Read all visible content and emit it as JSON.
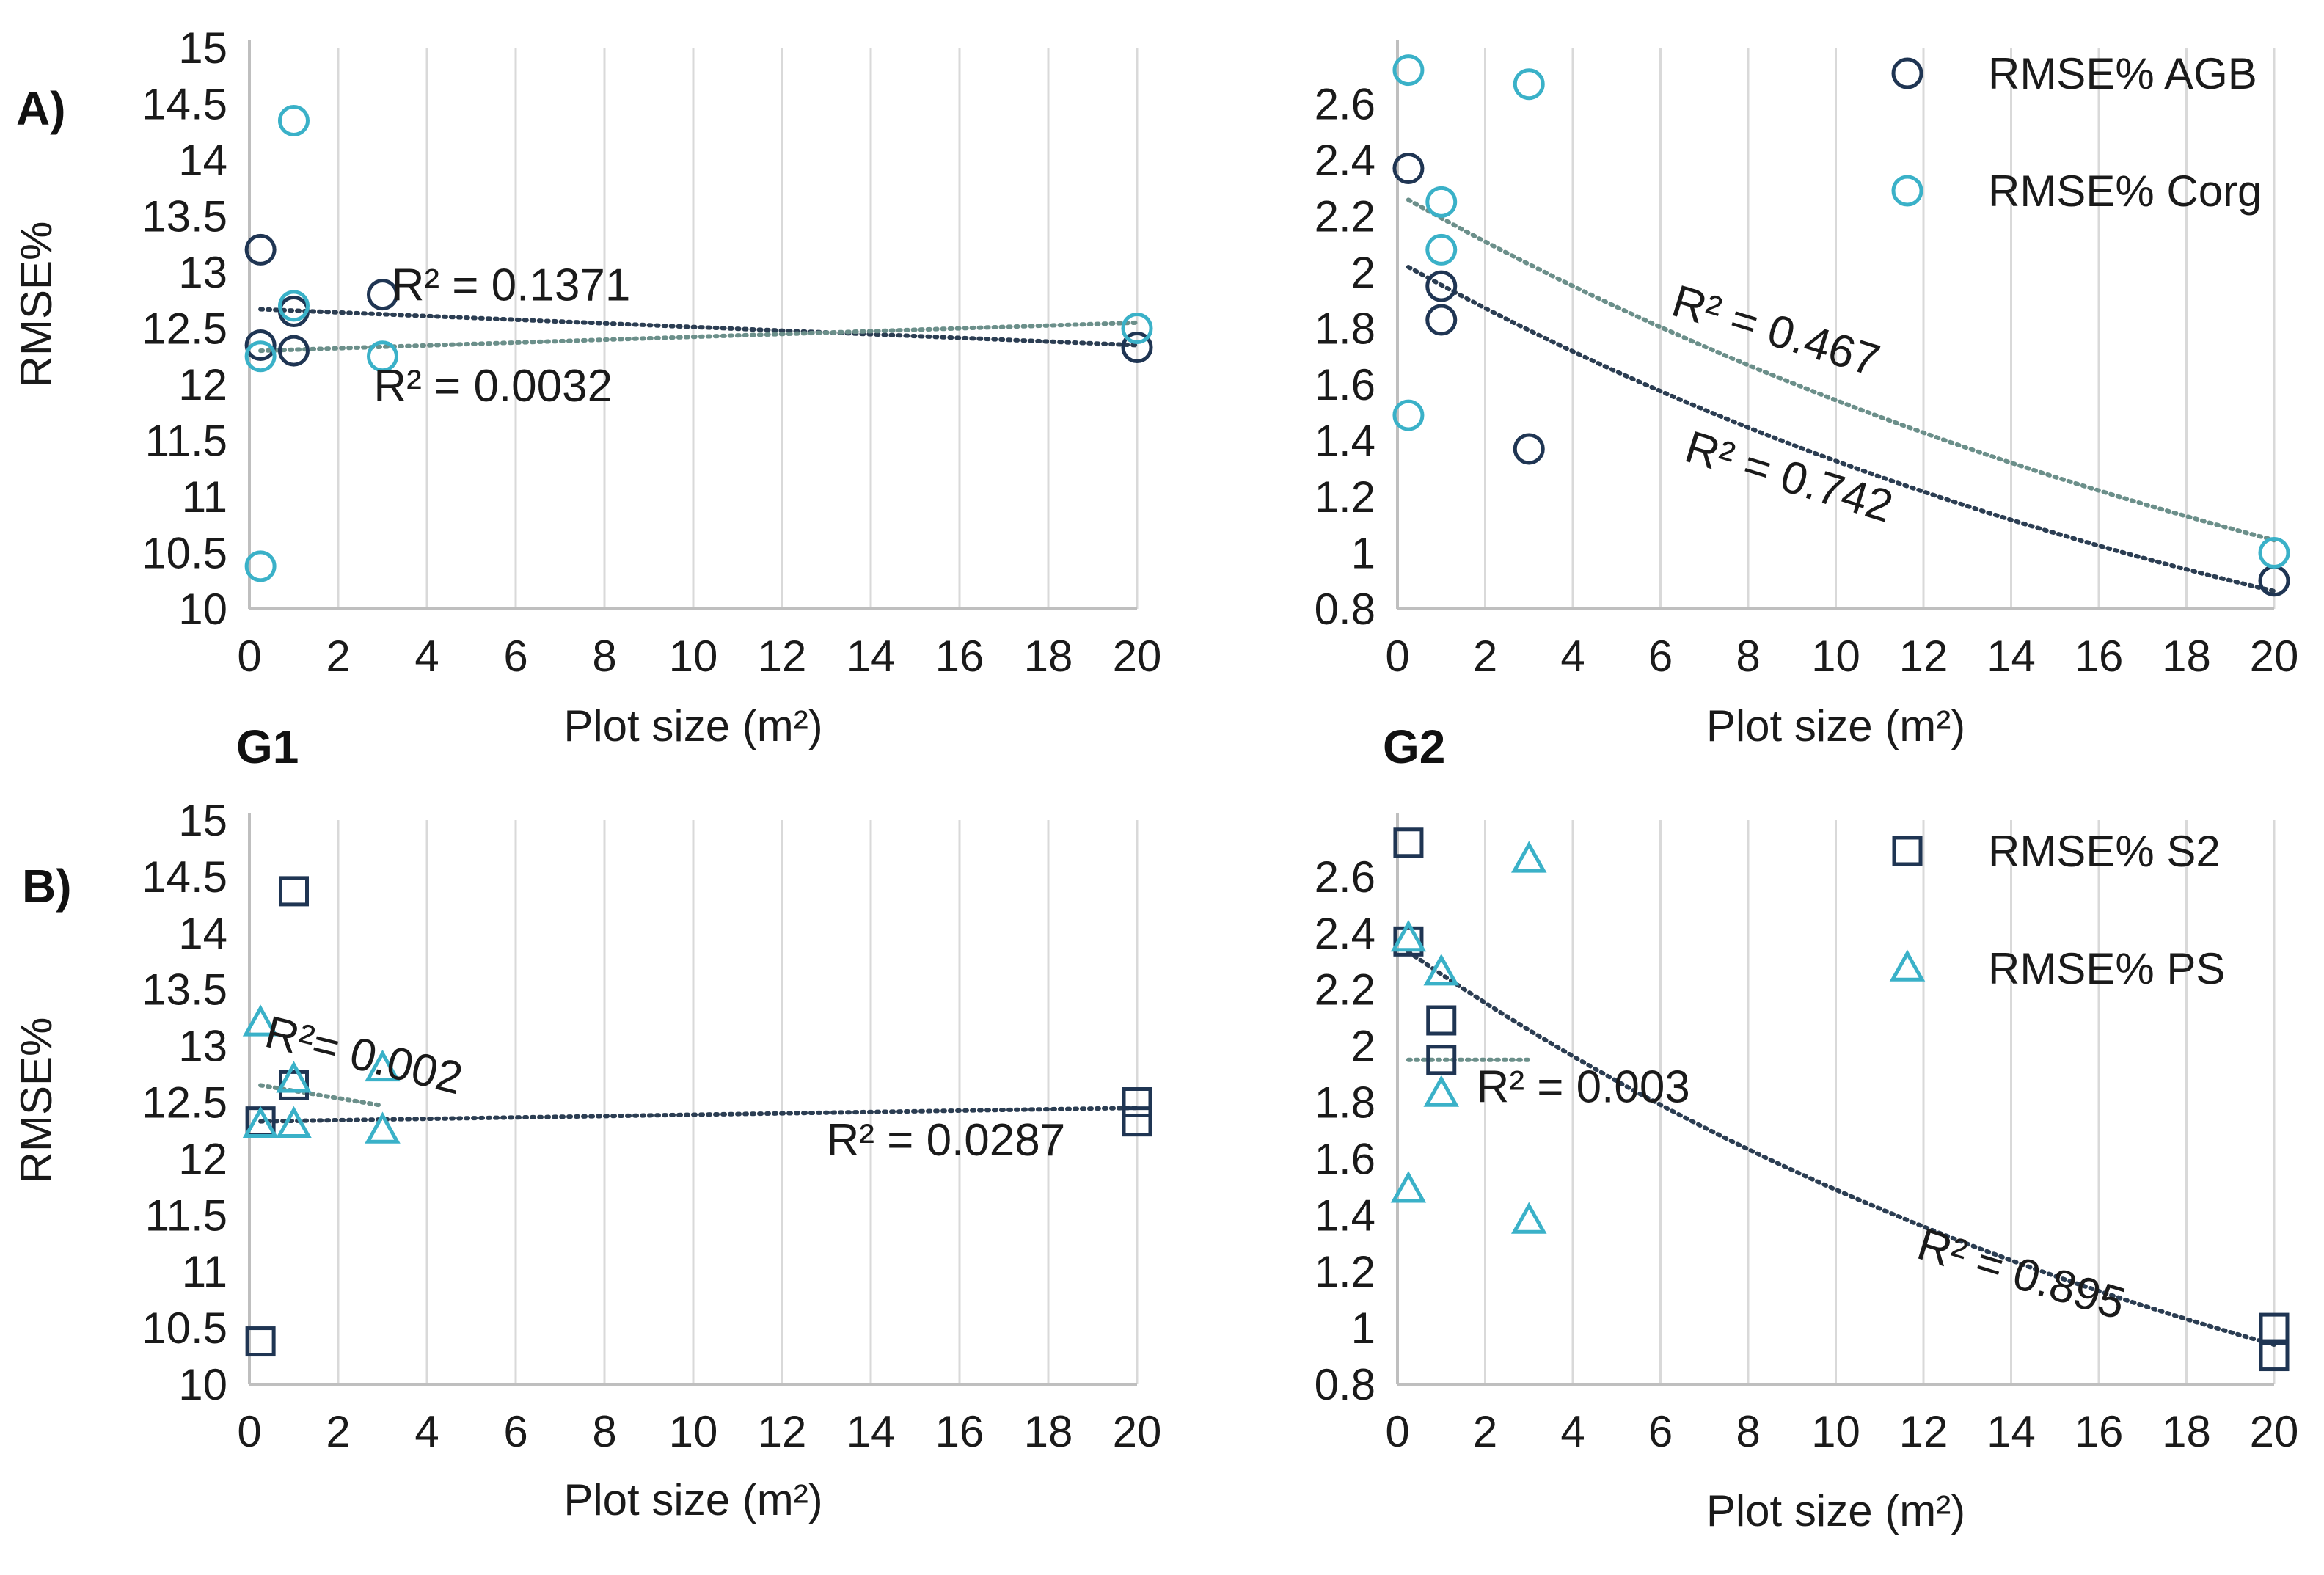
{
  "panel_labels": {
    "A": "A)",
    "B": "B)",
    "G1": "G1",
    "G2": "G2"
  },
  "colors": {
    "dark": "#1f3553",
    "light": "#3ab1c8"
  },
  "chart_data": [
    {
      "id": "A_G1",
      "type": "scatter",
      "xlabel": "Plot size (m²)",
      "ylabel": "RMSE%",
      "xlim": [
        0,
        20
      ],
      "ylim": [
        10,
        15
      ],
      "xticks": [
        "0",
        "2",
        "4",
        "6",
        "8",
        "10",
        "12",
        "14",
        "16",
        "18",
        "20"
      ],
      "yticks": [
        "10",
        "10.5",
        "11",
        "11.5",
        "12",
        "12.5",
        "13",
        "13.5",
        "14",
        "14.5",
        "15"
      ],
      "series": [
        {
          "name": "RMSE% AGB",
          "marker": "circle",
          "color": "dark",
          "x": [
            0.25,
            0.25,
            1,
            1,
            3,
            20
          ],
          "y": [
            13.2,
            12.35,
            12.65,
            12.3,
            12.8,
            12.33
          ]
        },
        {
          "name": "RMSE% Corg",
          "marker": "circle",
          "color": "light",
          "x": [
            0.25,
            0.25,
            1,
            1,
            3,
            20
          ],
          "y": [
            10.38,
            12.25,
            14.35,
            12.7,
            12.25,
            12.5
          ]
        }
      ],
      "trendlines": [
        {
          "color": "dark",
          "x": [
            0.25,
            20
          ],
          "y": [
            12.67,
            12.35
          ]
        },
        {
          "color": "light",
          "x": [
            0.25,
            20
          ],
          "y": [
            12.3,
            12.55
          ]
        }
      ],
      "annotations": [
        {
          "text": "R² = 0.1371",
          "x": 3.2,
          "y": 12.75,
          "rotate": 0
        },
        {
          "text": "R² = 0.0032",
          "x": 2.8,
          "y": 11.85,
          "rotate": 0
        }
      ]
    },
    {
      "id": "A_G2",
      "type": "scatter",
      "xlabel": "Plot size (m²)",
      "ylabel": "",
      "xlim": [
        0,
        20
      ],
      "ylim": [
        0.8,
        2.8
      ],
      "xticks": [
        "0",
        "2",
        "4",
        "6",
        "8",
        "10",
        "12",
        "14",
        "16",
        "18",
        "20"
      ],
      "yticks": [
        "0.8",
        "1",
        "1.2",
        "1.4",
        "1.6",
        "1.8",
        "2",
        "2.2",
        "2.4",
        "2.6"
      ],
      "series": [
        {
          "name": "RMSE% AGB",
          "marker": "circle",
          "color": "dark",
          "x": [
            0.25,
            1,
            1,
            3,
            20
          ],
          "y": [
            2.37,
            1.95,
            1.83,
            1.37,
            0.9
          ]
        },
        {
          "name": "RMSE% Corg",
          "marker": "circle",
          "color": "light",
          "x": [
            0.25,
            0.25,
            1,
            1,
            3,
            20
          ],
          "y": [
            2.72,
            1.49,
            2.25,
            2.08,
            2.67,
            1.0
          ]
        }
      ],
      "trendlines": [
        {
          "color": "dark",
          "type": "exp",
          "a": 2.04,
          "b": 0.043
        },
        {
          "color": "light",
          "type": "exp",
          "a": 2.28,
          "b": 0.039
        }
      ],
      "annotations": [
        {
          "text": "R² = 0.467",
          "x": 6.2,
          "y": 1.85,
          "rotate": 17
        },
        {
          "text": "R² = 0.742",
          "x": 6.5,
          "y": 1.33,
          "rotate": 17
        }
      ],
      "legend": [
        {
          "label": "RMSE% AGB",
          "marker": "circle",
          "color": "dark"
        },
        {
          "label": "RMSE% Corg",
          "marker": "circle",
          "color": "light"
        }
      ]
    },
    {
      "id": "B_G1",
      "type": "scatter",
      "xlabel": "Plot size (m²)",
      "ylabel": "RMSE%",
      "xlim": [
        0,
        20
      ],
      "ylim": [
        10,
        15
      ],
      "xticks": [
        "0",
        "2",
        "4",
        "6",
        "8",
        "10",
        "12",
        "14",
        "16",
        "18",
        "20"
      ],
      "yticks": [
        "10",
        "10.5",
        "11",
        "11.5",
        "12",
        "12.5",
        "13",
        "13.5",
        "14",
        "14.5",
        "15"
      ],
      "series": [
        {
          "name": "RMSE% S2",
          "marker": "square",
          "color": "dark",
          "x": [
            0.25,
            0.25,
            1,
            1,
            20,
            20
          ],
          "y": [
            10.38,
            12.33,
            14.37,
            12.65,
            12.33,
            12.5
          ]
        },
        {
          "name": "RMSE% PS",
          "marker": "triangle",
          "color": "light",
          "x": [
            0.25,
            0.25,
            1,
            1,
            3,
            3
          ],
          "y": [
            13.2,
            12.3,
            12.7,
            12.3,
            12.8,
            12.25
          ]
        }
      ],
      "trendlines": [
        {
          "color": "dark",
          "x": [
            0.25,
            20
          ],
          "y": [
            12.33,
            12.45
          ]
        },
        {
          "color": "light",
          "x": [
            0.25,
            3
          ],
          "y": [
            12.65,
            12.47
          ]
        }
      ],
      "annotations": [
        {
          "text": "R²= 0.002",
          "x": 0.3,
          "y": 13.0,
          "rotate": 14
        },
        {
          "text": "R² = 0.0287",
          "x": 13.0,
          "y": 12.03,
          "rotate": 0
        }
      ]
    },
    {
      "id": "B_G2",
      "type": "scatter",
      "xlabel": "Plot size (m²)",
      "ylabel": "",
      "xlim": [
        0,
        20
      ],
      "ylim": [
        0.8,
        2.8
      ],
      "xticks": [
        "0",
        "2",
        "4",
        "6",
        "8",
        "10",
        "12",
        "14",
        "16",
        "18",
        "20"
      ],
      "yticks": [
        "0.8",
        "1",
        "1.2",
        "1.4",
        "1.6",
        "1.8",
        "2",
        "2.2",
        "2.4",
        "2.6"
      ],
      "series": [
        {
          "name": "RMSE% S2",
          "marker": "square",
          "color": "dark",
          "x": [
            0.25,
            0.25,
            1,
            1,
            20,
            20
          ],
          "y": [
            2.72,
            2.37,
            2.09,
            1.95,
            1.0,
            0.9
          ]
        },
        {
          "name": "RMSE% PS",
          "marker": "triangle",
          "color": "light",
          "x": [
            0.25,
            0.25,
            1,
            1,
            3,
            3
          ],
          "y": [
            2.38,
            1.49,
            2.26,
            1.83,
            2.66,
            1.38
          ]
        }
      ],
      "trendlines": [
        {
          "color": "dark",
          "type": "exp",
          "a": 2.36,
          "b": 0.046,
          "x0": 0.25,
          "x1": 20
        },
        {
          "color": "light",
          "x": [
            0.25,
            3
          ],
          "y": [
            1.95,
            1.95
          ]
        }
      ],
      "annotations": [
        {
          "text": "R² = 0.003",
          "x": 1.8,
          "y": 1.8,
          "rotate": 0
        },
        {
          "text": "R² = 0.895",
          "x": 11.8,
          "y": 1.25,
          "rotate": 17
        }
      ],
      "legend": [
        {
          "label": "RMSE% S2",
          "marker": "square",
          "color": "dark"
        },
        {
          "label": "RMSE% PS",
          "marker": "triangle",
          "color": "light"
        }
      ]
    }
  ]
}
